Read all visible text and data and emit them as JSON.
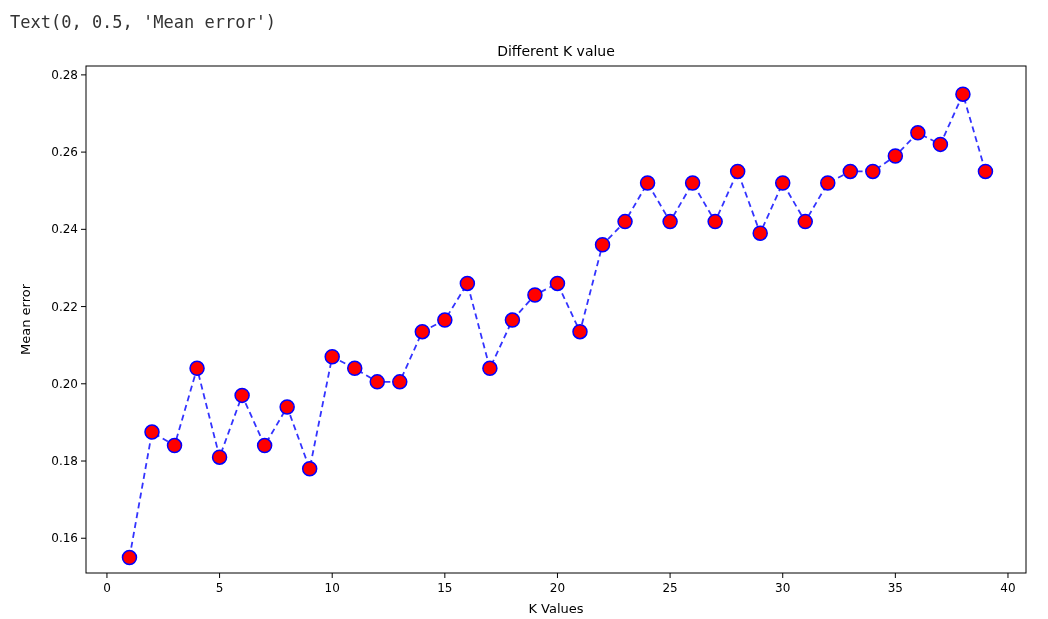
{
  "chart_data": {
    "type": "line",
    "title": "Different K value",
    "xlabel": "K Values",
    "ylabel": "Mean error",
    "annotations": [
      "Text(0, 0.5, 'Mean error')"
    ],
    "x": [
      1,
      2,
      3,
      4,
      5,
      6,
      7,
      8,
      9,
      10,
      11,
      12,
      13,
      14,
      15,
      16,
      17,
      18,
      19,
      20,
      21,
      22,
      23,
      24,
      25,
      26,
      27,
      28,
      29,
      30,
      31,
      32,
      33,
      34,
      35,
      36,
      37,
      38,
      39
    ],
    "series": [
      {
        "color": "#0000ff",
        "values": [
          0.155,
          0.1875,
          0.184,
          0.204,
          0.181,
          0.197,
          0.184,
          0.194,
          0.178,
          0.207,
          0.204,
          0.2005,
          0.2005,
          0.2135,
          0.2165,
          0.226,
          0.204,
          0.2165,
          0.223,
          0.226,
          0.2135,
          0.236,
          0.242,
          0.252,
          0.242,
          0.252,
          0.242,
          0.255,
          0.239,
          0.252,
          0.242,
          0.252,
          0.255,
          0.255,
          0.259,
          0.265,
          0.262,
          0.275,
          0.255
        ]
      }
    ],
    "xlim": [
      -0.93,
      40.8
    ],
    "xticks": [
      0,
      5,
      10,
      15,
      20,
      25,
      30,
      35,
      40
    ],
    "ylim": [
      0.151,
      0.2823
    ],
    "yticks": [
      {
        "value": 0.16,
        "label": "0.16"
      },
      {
        "value": 0.18,
        "label": "0.18"
      },
      {
        "value": 0.2,
        "label": "0.20"
      },
      {
        "value": 0.22,
        "label": "0.22"
      },
      {
        "value": 0.24,
        "label": "0.24"
      },
      {
        "value": 0.26,
        "label": "0.26"
      },
      {
        "value": 0.28,
        "label": "0.28"
      }
    ],
    "marker": "circle",
    "line_style": "dashed"
  }
}
